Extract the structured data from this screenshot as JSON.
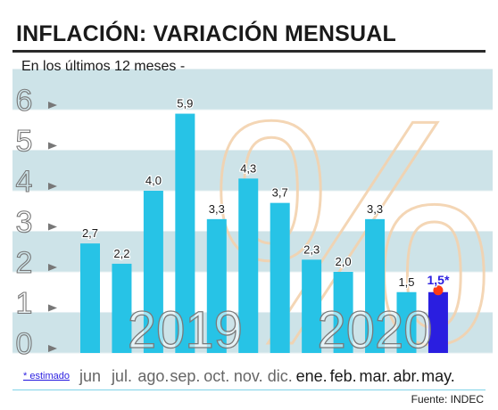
{
  "header": {
    "title": "INFLACIÓN: VARIACIÓN MENSUAL",
    "subtitle": "En los últimos 12 meses -"
  },
  "footer": {
    "source": "Fuente: INDEC",
    "estimate_note": "* estimado"
  },
  "decor": {
    "percent_glyph": "%",
    "percent_color": "#f3d2ae"
  },
  "chart_data": {
    "type": "bar",
    "title": "INFLACIÓN: VARIACIÓN MENSUAL",
    "subtitle": "En los últimos 12 meses -",
    "categories": [
      "jun",
      "jul.",
      "ago.",
      "sep.",
      "oct.",
      "nov.",
      "dic.",
      "ene.",
      "feb.",
      "mar.",
      "abr.",
      "may."
    ],
    "values": [
      2.7,
      2.2,
      4.0,
      5.9,
      3.3,
      4.3,
      3.7,
      2.3,
      2.0,
      3.3,
      1.5,
      1.5
    ],
    "value_labels": [
      "2,7",
      "2,2",
      "4,0",
      "5,9",
      "3,3",
      "4,3",
      "3,7",
      "2,3",
      "2,0",
      "3,3",
      "1,5",
      "1,5*"
    ],
    "estimated": [
      false,
      false,
      false,
      false,
      false,
      false,
      false,
      false,
      false,
      false,
      false,
      true
    ],
    "year_labels": [
      {
        "label": "2019",
        "first_index": 0,
        "last_index": 6
      },
      {
        "label": "2020",
        "first_index": 7,
        "last_index": 11
      }
    ],
    "yticks": [
      0,
      1,
      2,
      3,
      4,
      5,
      6
    ],
    "ylim": [
      0,
      6.5
    ],
    "grid": true,
    "colors": {
      "bar": "#27c3e6",
      "bar_estimated": "#2a1ee0",
      "estimate_marker": "#ff3b14",
      "stripe": "#cde3e8",
      "tick": "#777777",
      "value_label": "#1a1a1a",
      "value_label_estimated": "#2a1ee0",
      "year_outline": "#7a7a7a"
    }
  }
}
